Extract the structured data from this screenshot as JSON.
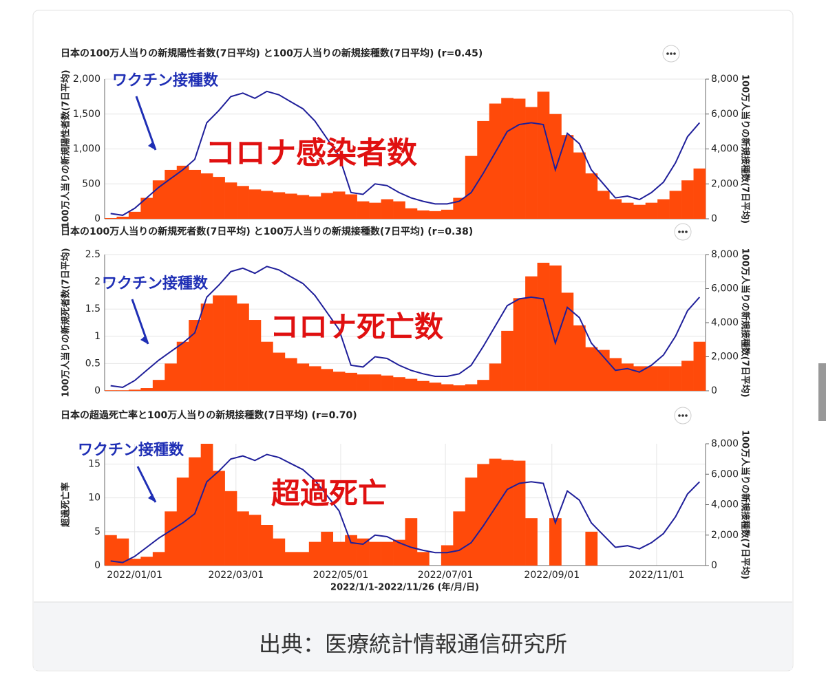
{
  "chart_data": [
    {
      "type": "bar_line",
      "title": "日本の100万人当りの新規陽性者数(7日平均) と100万人当りの新規接種数(7日平均)  (r=0.45)",
      "y_label": "100万人当りの新規陽性者数(7日平均)",
      "y2_label": "100万人当りの新規接種数(7日平均)",
      "annotations": [
        "ワクチン接種数",
        "コロナ感染者数"
      ],
      "x": [
        "2021/12/18",
        "2021/12/25",
        "2022/01/01",
        "2022/01/08",
        "2022/01/15",
        "2022/01/22",
        "2022/01/29",
        "2022/02/05",
        "2022/02/12",
        "2022/02/19",
        "2022/02/26",
        "2022/03/05",
        "2022/03/12",
        "2022/03/19",
        "2022/03/26",
        "2022/04/02",
        "2022/04/09",
        "2022/04/16",
        "2022/04/23",
        "2022/04/30",
        "2022/05/07",
        "2022/05/14",
        "2022/05/21",
        "2022/05/28",
        "2022/06/04",
        "2022/06/11",
        "2022/06/18",
        "2022/06/25",
        "2022/07/02",
        "2022/07/09",
        "2022/07/16",
        "2022/07/23",
        "2022/07/30",
        "2022/08/06",
        "2022/08/13",
        "2022/08/20",
        "2022/08/27",
        "2022/09/03",
        "2022/09/10",
        "2022/09/17",
        "2022/09/24",
        "2022/10/01",
        "2022/10/08",
        "2022/10/15",
        "2022/10/22",
        "2022/10/29",
        "2022/11/05",
        "2022/11/12",
        "2022/11/19",
        "2022/11/26"
      ],
      "series": [
        {
          "name": "新規陽性者数",
          "kind": "bar",
          "color": "#ff4a0a",
          "values": [
            10,
            30,
            100,
            300,
            550,
            700,
            760,
            700,
            650,
            600,
            520,
            470,
            420,
            400,
            380,
            360,
            340,
            320,
            370,
            390,
            350,
            250,
            230,
            280,
            250,
            150,
            120,
            110,
            130,
            300,
            900,
            1400,
            1650,
            1730,
            1720,
            1600,
            1820,
            1500,
            1200,
            950,
            650,
            400,
            280,
            230,
            200,
            230,
            280,
            400,
            550,
            720
          ]
        },
        {
          "name": "新規接種数",
          "kind": "line",
          "axis": "y2",
          "color": "#1f1f9a",
          "values": [
            300,
            200,
            600,
            1200,
            1800,
            2300,
            2800,
            3400,
            5500,
            6200,
            7000,
            7200,
            6900,
            7300,
            7100,
            6700,
            6300,
            5600,
            4600,
            3600,
            1500,
            1400,
            2000,
            1900,
            1500,
            1200,
            1000,
            850,
            850,
            1000,
            1500,
            2600,
            3800,
            5000,
            5400,
            5500,
            5400,
            2800,
            4900,
            4300,
            2800,
            2000,
            1200,
            1300,
            1100,
            1500,
            2100,
            3200,
            4700,
            5500
          ]
        }
      ],
      "ylim": [
        0,
        2000
      ],
      "yticks": [
        0,
        500,
        {
          "value": 1000,
          "label": "1,000"
        },
        {
          "value": 1500,
          "label": "1,500"
        },
        {
          "value": 2000,
          "label": "2,000"
        }
      ],
      "y2lim": [
        0,
        8000
      ],
      "y2ticks": [
        0,
        {
          "value": 2000,
          "label": "2,000"
        },
        {
          "value": 4000,
          "label": "4,000"
        },
        {
          "value": 6000,
          "label": "6,000"
        },
        {
          "value": 8000,
          "label": "8,000"
        }
      ]
    },
    {
      "type": "bar_line",
      "title": "日本の100万人当りの新規死者数(7日平均) と100万人当りの新規接種数(7日平均)  (r=0.38)",
      "y_label": "100万人当りの新規死者数(7日平均)",
      "y2_label": "100万人当りの新規接種数(7日平均)",
      "annotations": [
        "ワクチン接種数",
        "コロナ死亡数"
      ],
      "x": [
        "2021/12/18",
        "2021/12/25",
        "2022/01/01",
        "2022/01/08",
        "2022/01/15",
        "2022/01/22",
        "2022/01/29",
        "2022/02/05",
        "2022/02/12",
        "2022/02/19",
        "2022/02/26",
        "2022/03/05",
        "2022/03/12",
        "2022/03/19",
        "2022/03/26",
        "2022/04/02",
        "2022/04/09",
        "2022/04/16",
        "2022/04/23",
        "2022/04/30",
        "2022/05/07",
        "2022/05/14",
        "2022/05/21",
        "2022/05/28",
        "2022/06/04",
        "2022/06/11",
        "2022/06/18",
        "2022/06/25",
        "2022/07/02",
        "2022/07/09",
        "2022/07/16",
        "2022/07/23",
        "2022/07/30",
        "2022/08/06",
        "2022/08/13",
        "2022/08/20",
        "2022/08/27",
        "2022/09/03",
        "2022/09/10",
        "2022/09/17",
        "2022/09/24",
        "2022/10/01",
        "2022/10/08",
        "2022/10/15",
        "2022/10/22",
        "2022/10/29",
        "2022/11/05",
        "2022/11/12",
        "2022/11/19",
        "2022/11/26"
      ],
      "series": [
        {
          "name": "新規死者数",
          "kind": "bar",
          "color": "#ff4a0a",
          "values": [
            0.01,
            0.01,
            0.02,
            0.05,
            0.2,
            0.5,
            0.9,
            1.3,
            1.6,
            1.75,
            1.75,
            1.6,
            1.3,
            0.9,
            0.7,
            0.6,
            0.5,
            0.45,
            0.4,
            0.35,
            0.33,
            0.3,
            0.3,
            0.28,
            0.25,
            0.22,
            0.18,
            0.15,
            0.12,
            0.1,
            0.12,
            0.2,
            0.5,
            1.1,
            1.7,
            2.1,
            2.35,
            2.3,
            1.8,
            1.2,
            0.8,
            0.75,
            0.6,
            0.5,
            0.45,
            0.45,
            0.45,
            0.45,
            0.55,
            0.9
          ]
        },
        {
          "name": "新規接種数",
          "kind": "line",
          "axis": "y2",
          "color": "#1f1f9a",
          "values": [
            300,
            200,
            600,
            1200,
            1800,
            2300,
            2800,
            3400,
            5500,
            6200,
            7000,
            7200,
            6900,
            7300,
            7100,
            6700,
            6300,
            5600,
            4600,
            3600,
            1500,
            1400,
            2000,
            1900,
            1500,
            1200,
            1000,
            850,
            850,
            1000,
            1500,
            2600,
            3800,
            5000,
            5400,
            5500,
            5400,
            2800,
            4900,
            4300,
            2800,
            2000,
            1200,
            1300,
            1100,
            1500,
            2100,
            3200,
            4700,
            5500
          ]
        }
      ],
      "ylim": [
        0,
        2.5
      ],
      "yticks": [
        0,
        0.5,
        1,
        1.5,
        2,
        2.5
      ],
      "y2lim": [
        0,
        8000
      ],
      "y2ticks": [
        0,
        {
          "value": 2000,
          "label": "2,000"
        },
        {
          "value": 4000,
          "label": "4,000"
        },
        {
          "value": 6000,
          "label": "6,000"
        },
        {
          "value": 8000,
          "label": "8,000"
        }
      ]
    },
    {
      "type": "bar_line",
      "title": "日本の超過死亡率と100万人当りの新規接種数(7日平均)  (r=0.70)",
      "y_label": "超過死亡率",
      "y2_label": "100万人当りの新規接種数(7日平均)",
      "x_label": "2022/1/1-2022/11/26 (年/月/日)",
      "annotations": [
        "ワクチン接種数",
        "超過死亡"
      ],
      "x": [
        "2021/12/18",
        "2021/12/25",
        "2022/01/01",
        "2022/01/08",
        "2022/01/15",
        "2022/01/22",
        "2022/01/29",
        "2022/02/05",
        "2022/02/12",
        "2022/02/19",
        "2022/02/26",
        "2022/03/05",
        "2022/03/12",
        "2022/03/19",
        "2022/03/26",
        "2022/04/02",
        "2022/04/09",
        "2022/04/16",
        "2022/04/23",
        "2022/04/30",
        "2022/05/07",
        "2022/05/14",
        "2022/05/21",
        "2022/05/28",
        "2022/06/04",
        "2022/06/11",
        "2022/06/18",
        "2022/06/25",
        "2022/07/02",
        "2022/07/09",
        "2022/07/16",
        "2022/07/23",
        "2022/07/30",
        "2022/08/06",
        "2022/08/13",
        "2022/08/20",
        "2022/08/27",
        "2022/09/03",
        "2022/09/10",
        "2022/09/17",
        "2022/09/24",
        "2022/10/01",
        "2022/10/08",
        "2022/10/15",
        "2022/10/22",
        "2022/10/29",
        "2022/11/05",
        "2022/11/12",
        "2022/11/19",
        "2022/11/26"
      ],
      "series": [
        {
          "name": "超過死亡率",
          "kind": "bar",
          "color": "#ff4a0a",
          "values": [
            4.5,
            4,
            1,
            1.3,
            2,
            8,
            13,
            16,
            18,
            14,
            11,
            8,
            7.5,
            6,
            4,
            2,
            2,
            3.5,
            5,
            3.5,
            4.5,
            4,
            3.5,
            3.5,
            3.8,
            7,
            2,
            0,
            3,
            8,
            13,
            15,
            15.8,
            15.6,
            15.5,
            7,
            0,
            7,
            0,
            0,
            5,
            0,
            0,
            0,
            0,
            0,
            0,
            0,
            0,
            0
          ]
        },
        {
          "name": "新規接種数",
          "kind": "line",
          "axis": "y2",
          "color": "#1f1f9a",
          "values": [
            300,
            200,
            600,
            1200,
            1800,
            2300,
            2800,
            3400,
            5500,
            6200,
            7000,
            7200,
            6900,
            7300,
            7100,
            6700,
            6300,
            5600,
            4600,
            3600,
            1500,
            1400,
            2000,
            1900,
            1500,
            1200,
            1000,
            850,
            850,
            1000,
            1500,
            2600,
            3800,
            5000,
            5400,
            5500,
            5400,
            2800,
            4900,
            4300,
            2800,
            2000,
            1200,
            1300,
            1100,
            1500,
            2100,
            3200,
            4700,
            5500
          ]
        }
      ],
      "xticks": [
        "2022/01/01",
        "2022/03/01",
        "2022/05/01",
        "2022/07/01",
        "2022/09/01",
        "2022/11/01"
      ],
      "ylim": [
        0,
        18
      ],
      "yticks": [
        0,
        5,
        10,
        15
      ],
      "y2lim": [
        0,
        8000
      ],
      "y2ticks": [
        0,
        {
          "value": 2000,
          "label": "2,000"
        },
        {
          "value": 4000,
          "label": "4,000"
        },
        {
          "value": 6000,
          "label": "6,000"
        },
        {
          "value": 8000,
          "label": "8,000"
        }
      ]
    }
  ],
  "footer": "出典：医療統計情報通信研究所"
}
